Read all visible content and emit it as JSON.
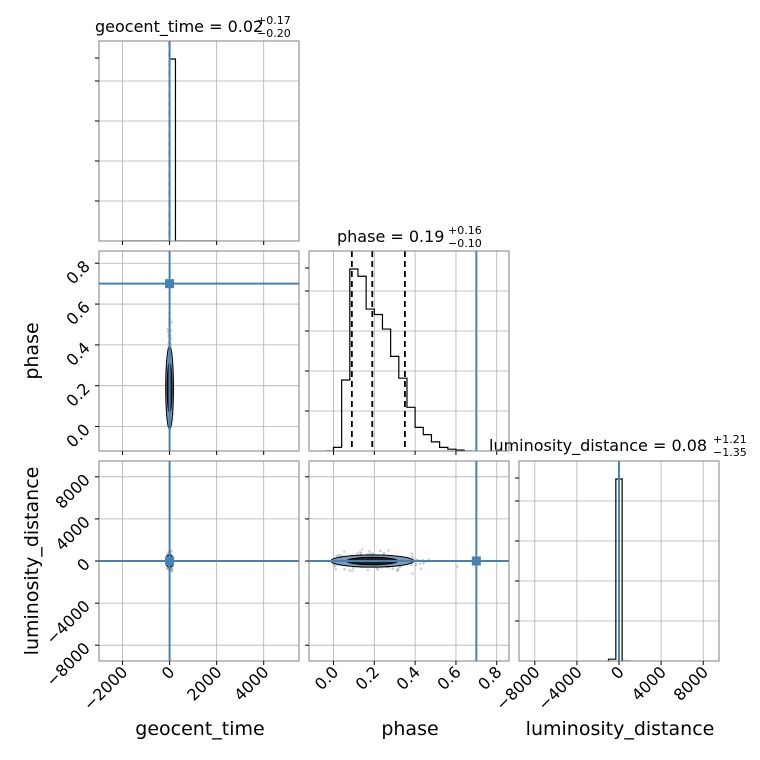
{
  "chart_data": {
    "type": "corner",
    "parameters": [
      "geocent_time",
      "phase",
      "luminosity_distance"
    ],
    "titles": {
      "geocent_time": {
        "label": "geocent_time = 0.02",
        "plus": "+0.17",
        "minus": "−0.20"
      },
      "phase": {
        "label": "phase = 0.19",
        "plus": "+0.16",
        "minus": "−0.10"
      },
      "luminosity_distance": {
        "label": "luminosity_distance = 0.08",
        "plus": "+1.21",
        "minus": "−1.35"
      }
    },
    "axis_labels": {
      "geocent_time": "geocent_time",
      "phase": "phase",
      "luminosity_distance": "luminosity_distance"
    },
    "ranges": {
      "geocent_time": [
        -3000,
        5500
      ],
      "phase": [
        -0.12,
        0.86
      ],
      "luminosity_distance": [
        -9500,
        9500
      ]
    },
    "ticks": {
      "geocent_time": {
        "values": [
          -2000,
          0,
          2000,
          4000
        ],
        "labels": [
          "−2000",
          "0",
          "2000",
          "4000"
        ]
      },
      "phase": {
        "values": [
          0.0,
          0.2,
          0.4,
          0.6,
          0.8
        ],
        "labels": [
          "0.0",
          "0.2",
          "0.4",
          "0.6",
          "0.8"
        ]
      },
      "luminosity_distance": {
        "values": [
          -8000,
          -4000,
          0,
          4000,
          8000
        ],
        "labels": [
          "−8000",
          "−4000",
          "0",
          "4000",
          "8000"
        ]
      }
    },
    "truths": {
      "geocent_time": 0,
      "phase": 0.7,
      "luminosity_distance": 0
    },
    "quantiles": {
      "geocent_time": [
        -0.18,
        0.02,
        0.19
      ],
      "phase": [
        0.09,
        0.19,
        0.35
      ],
      "luminosity_distance": [
        -1.27,
        0.08,
        1.29
      ]
    },
    "histograms": {
      "geocent_time": {
        "edges": [
          -2000,
          -1800,
          0,
          250,
          2000
        ],
        "counts": [
          0,
          0,
          1.0,
          0
        ]
      },
      "phase": {
        "edges": [
          -0.04,
          0.0,
          0.04,
          0.08,
          0.12,
          0.16,
          0.2,
          0.24,
          0.28,
          0.32,
          0.36,
          0.4,
          0.44,
          0.48,
          0.52,
          0.56,
          0.6,
          0.64,
          0.68
        ],
        "counts": [
          0.0,
          0.02,
          0.39,
          1.0,
          0.96,
          0.78,
          0.75,
          0.67,
          0.52,
          0.4,
          0.24,
          0.13,
          0.09,
          0.05,
          0.02,
          0.01,
          0.005,
          0.0
        ]
      },
      "luminosity_distance": {
        "edges": [
          -1000,
          -300,
          300,
          1000
        ],
        "counts": [
          0.01,
          1.0,
          0.0
        ]
      }
    },
    "grid": true,
    "truth_color": "#4682b4",
    "hist_color": "#000000"
  }
}
